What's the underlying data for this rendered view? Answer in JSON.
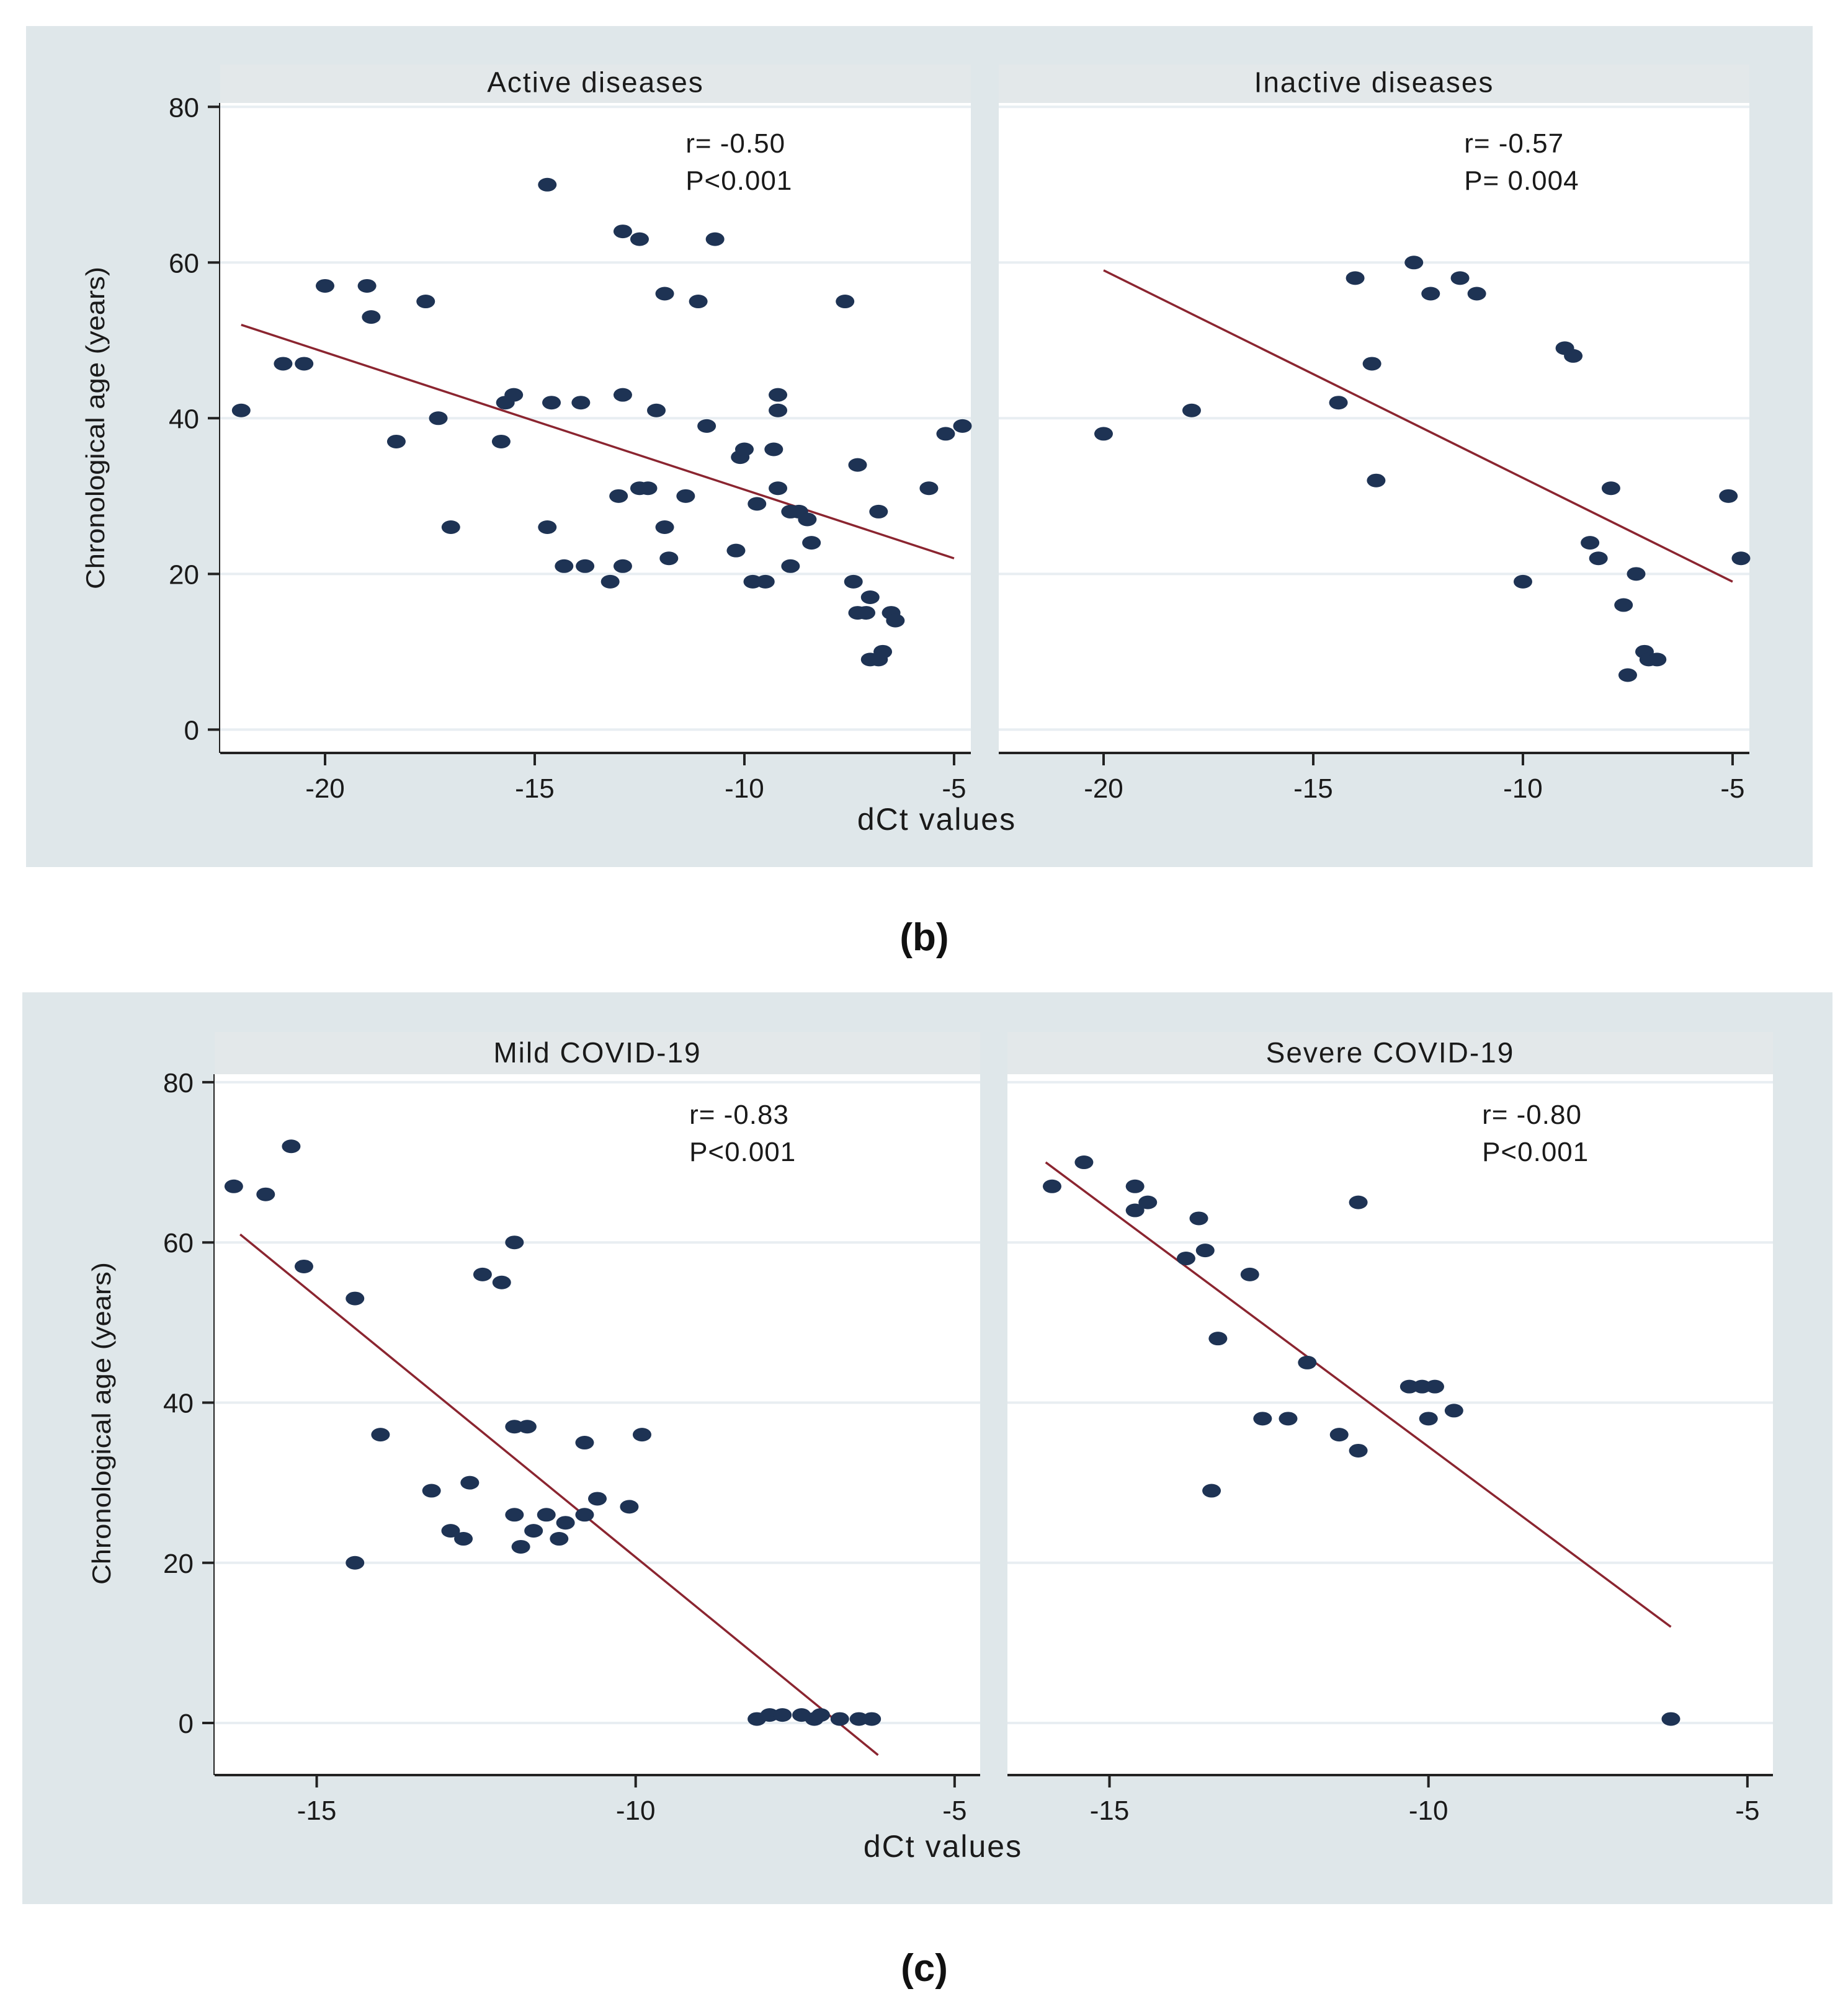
{
  "figure": {
    "background": "#dfe7ea",
    "panel_background": "#ffffff",
    "strip_background": "#e3e8ea",
    "grid_color": "#e8eef2",
    "point_color": "#1e3354",
    "line_color": "#8b2530"
  },
  "chart_data": [
    {
      "type": "scatter",
      "caption": "(b)",
      "xlabel": "dCt values",
      "ylabel": "Chronological age (years)",
      "xlim": [
        -22.5,
        -4.6
      ],
      "ylim": [
        -3,
        80.5
      ],
      "xticks": [
        -20,
        -15,
        -10,
        -5
      ],
      "xtick_labels": [
        "-20",
        "-15",
        "-10",
        "-5"
      ],
      "yticks": [
        0,
        20,
        40,
        60,
        80
      ],
      "ytick_labels": [
        "0",
        "20",
        "40",
        "60",
        "80"
      ],
      "panels": [
        {
          "title": "Active diseases",
          "stats": [
            "r= -0.50",
            "P<0.001"
          ],
          "fit": {
            "x": [
              -22,
              -5
            ],
            "y": [
              52,
              22
            ]
          },
          "points": [
            [
              -22,
              41
            ],
            [
              -21,
              47
            ],
            [
              -20.5,
              47
            ],
            [
              -20,
              57
            ],
            [
              -19,
              57
            ],
            [
              -18.9,
              53
            ],
            [
              -18.3,
              37
            ],
            [
              -17.6,
              55
            ],
            [
              -17.3,
              40
            ],
            [
              -17,
              26
            ],
            [
              -15.8,
              37
            ],
            [
              -15.7,
              42
            ],
            [
              -15.5,
              43
            ],
            [
              -14.7,
              70
            ],
            [
              -14.7,
              26
            ],
            [
              -14.6,
              42
            ],
            [
              -14.3,
              21
            ],
            [
              -13.9,
              42
            ],
            [
              -13.8,
              21
            ],
            [
              -13.2,
              19
            ],
            [
              -13,
              30
            ],
            [
              -12.9,
              64
            ],
            [
              -12.9,
              43
            ],
            [
              -12.9,
              21
            ],
            [
              -12.5,
              63
            ],
            [
              -12.5,
              31
            ],
            [
              -12.3,
              31
            ],
            [
              -12.1,
              41
            ],
            [
              -11.9,
              56
            ],
            [
              -11.9,
              26
            ],
            [
              -11.8,
              22
            ],
            [
              -11.4,
              30
            ],
            [
              -11.1,
              55
            ],
            [
              -10.9,
              39
            ],
            [
              -10.7,
              63
            ],
            [
              -10.2,
              23
            ],
            [
              -10.1,
              35
            ],
            [
              -10,
              36
            ],
            [
              -9.8,
              19
            ],
            [
              -9.7,
              29
            ],
            [
              -9.5,
              19
            ],
            [
              -9.3,
              36
            ],
            [
              -9.2,
              43
            ],
            [
              -9.2,
              41
            ],
            [
              -9.2,
              31
            ],
            [
              -8.9,
              28
            ],
            [
              -8.9,
              21
            ],
            [
              -8.7,
              28
            ],
            [
              -8.5,
              27
            ],
            [
              -8.4,
              24
            ],
            [
              -7.6,
              55
            ],
            [
              -7.4,
              19
            ],
            [
              -7.3,
              34
            ],
            [
              -7.3,
              15
            ],
            [
              -7.1,
              15
            ],
            [
              -7,
              17
            ],
            [
              -7,
              9
            ],
            [
              -6.8,
              28
            ],
            [
              -6.8,
              9
            ],
            [
              -6.7,
              10
            ],
            [
              -6.5,
              15
            ],
            [
              -6.4,
              14
            ],
            [
              -5.6,
              31
            ],
            [
              -5.2,
              38
            ],
            [
              -4.8,
              39
            ]
          ]
        },
        {
          "title": "Inactive diseases",
          "stats": [
            "r= -0.57",
            "P= 0.004"
          ],
          "fit": {
            "x": [
              -20,
              -5
            ],
            "y": [
              59,
              19
            ]
          },
          "points": [
            [
              -20,
              38
            ],
            [
              -17.9,
              41
            ],
            [
              -14.4,
              42
            ],
            [
              -14,
              58
            ],
            [
              -13.6,
              47
            ],
            [
              -13.5,
              32
            ],
            [
              -12.6,
              60
            ],
            [
              -12.2,
              56
            ],
            [
              -11.5,
              58
            ],
            [
              -11.1,
              56
            ],
            [
              -10,
              19
            ],
            [
              -9,
              49
            ],
            [
              -8.8,
              48
            ],
            [
              -8.4,
              24
            ],
            [
              -8.2,
              22
            ],
            [
              -7.9,
              31
            ],
            [
              -7.6,
              16
            ],
            [
              -7.5,
              7
            ],
            [
              -7.3,
              20
            ],
            [
              -7.1,
              10
            ],
            [
              -7,
              9
            ],
            [
              -6.8,
              9
            ],
            [
              -5.1,
              30
            ],
            [
              -4.8,
              22
            ]
          ]
        }
      ]
    },
    {
      "type": "scatter",
      "caption": "(c)",
      "xlabel": "dCt values",
      "ylabel": "Chronological age (years)",
      "xlim": [
        -16.6,
        -4.6
      ],
      "ylim": [
        -6.5,
        81
      ],
      "xticks": [
        -15,
        -10,
        -5
      ],
      "xtick_labels": [
        "-15",
        "-10",
        "-5"
      ],
      "yticks": [
        0,
        20,
        40,
        60,
        80
      ],
      "ytick_labels": [
        "0",
        "20",
        "40",
        "60",
        "80"
      ],
      "panels": [
        {
          "title": "Mild COVID-19",
          "stats": [
            "r= -0.83",
            "P<0.001"
          ],
          "fit": {
            "x": [
              -16.2,
              -6.2
            ],
            "y": [
              61,
              -4
            ]
          },
          "points": [
            [
              -16.3,
              67
            ],
            [
              -15.8,
              66
            ],
            [
              -15.4,
              72
            ],
            [
              -15.2,
              57
            ],
            [
              -14.4,
              53
            ],
            [
              -14.4,
              20
            ],
            [
              -14,
              36
            ],
            [
              -13.2,
              29
            ],
            [
              -12.9,
              24
            ],
            [
              -12.7,
              23
            ],
            [
              -12.6,
              30
            ],
            [
              -12.4,
              56
            ],
            [
              -12.1,
              55
            ],
            [
              -11.9,
              60
            ],
            [
              -11.9,
              37
            ],
            [
              -11.9,
              26
            ],
            [
              -11.8,
              22
            ],
            [
              -11.7,
              37
            ],
            [
              -11.6,
              24
            ],
            [
              -11.4,
              26
            ],
            [
              -11.2,
              23
            ],
            [
              -11.1,
              25
            ],
            [
              -10.8,
              35
            ],
            [
              -10.8,
              26
            ],
            [
              -10.6,
              28
            ],
            [
              -10.1,
              27
            ],
            [
              -9.9,
              36
            ],
            [
              -8.1,
              0.5
            ],
            [
              -7.9,
              1
            ],
            [
              -7.7,
              1
            ],
            [
              -7.4,
              1
            ],
            [
              -7.2,
              0.5
            ],
            [
              -7.1,
              1
            ],
            [
              -6.8,
              0.5
            ],
            [
              -6.5,
              0.5
            ],
            [
              -6.3,
              0.5
            ]
          ]
        },
        {
          "title": "Severe COVID-19",
          "stats": [
            "r= -0.80",
            "P<0.001"
          ],
          "fit": {
            "x": [
              -16,
              -6.2
            ],
            "y": [
              70,
              12
            ]
          },
          "points": [
            [
              -15.9,
              67
            ],
            [
              -15.4,
              70
            ],
            [
              -14.6,
              67
            ],
            [
              -14.6,
              64
            ],
            [
              -14.4,
              65
            ],
            [
              -13.8,
              58
            ],
            [
              -13.6,
              63
            ],
            [
              -13.5,
              59
            ],
            [
              -13.4,
              29
            ],
            [
              -13.3,
              48
            ],
            [
              -12.8,
              56
            ],
            [
              -12.6,
              38
            ],
            [
              -12.2,
              38
            ],
            [
              -11.9,
              45
            ],
            [
              -11.4,
              36
            ],
            [
              -11.1,
              65
            ],
            [
              -11.1,
              34
            ],
            [
              -10.3,
              42
            ],
            [
              -10.1,
              42
            ],
            [
              -10,
              38
            ],
            [
              -9.9,
              42
            ],
            [
              -9.6,
              39
            ],
            [
              -6.2,
              0.5
            ]
          ]
        }
      ]
    }
  ]
}
